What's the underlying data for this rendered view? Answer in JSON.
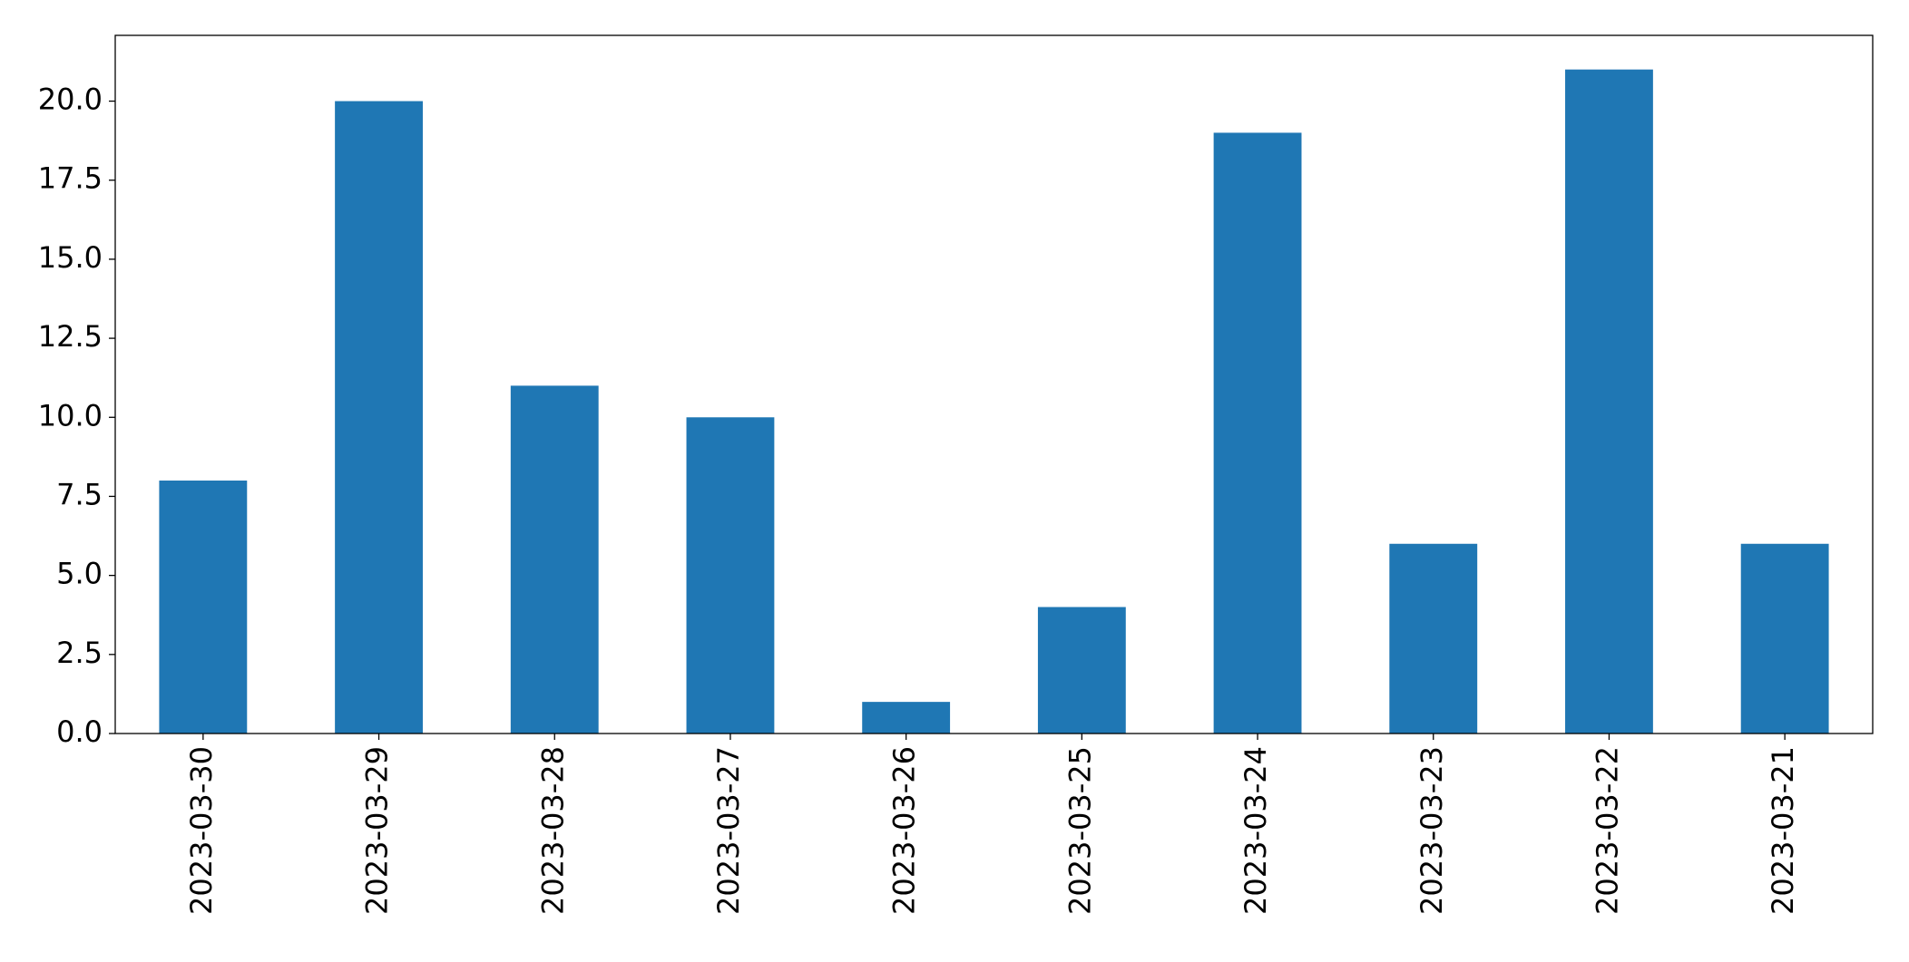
{
  "chart_data": {
    "type": "bar",
    "categories": [
      "2023-03-30",
      "2023-03-29",
      "2023-03-28",
      "2023-03-27",
      "2023-03-26",
      "2023-03-25",
      "2023-03-24",
      "2023-03-23",
      "2023-03-22",
      "2023-03-21"
    ],
    "values": [
      8,
      20,
      11,
      10,
      1,
      4,
      19,
      6,
      21,
      6
    ],
    "color": "#1f77b4",
    "ylim": [
      0,
      22.08
    ],
    "yticks": [
      {
        "value": 0,
        "label": "0.0"
      },
      {
        "value": 2.5,
        "label": "2.5"
      },
      {
        "value": 5,
        "label": "5.0"
      },
      {
        "value": 7.5,
        "label": "7.5"
      },
      {
        "value": 10,
        "label": "10.0"
      },
      {
        "value": 12.5,
        "label": "12.5"
      },
      {
        "value": 15,
        "label": "15.0"
      },
      {
        "value": 17.5,
        "label": "17.5"
      },
      {
        "value": 20,
        "label": "20.0"
      }
    ],
    "grid": false
  }
}
